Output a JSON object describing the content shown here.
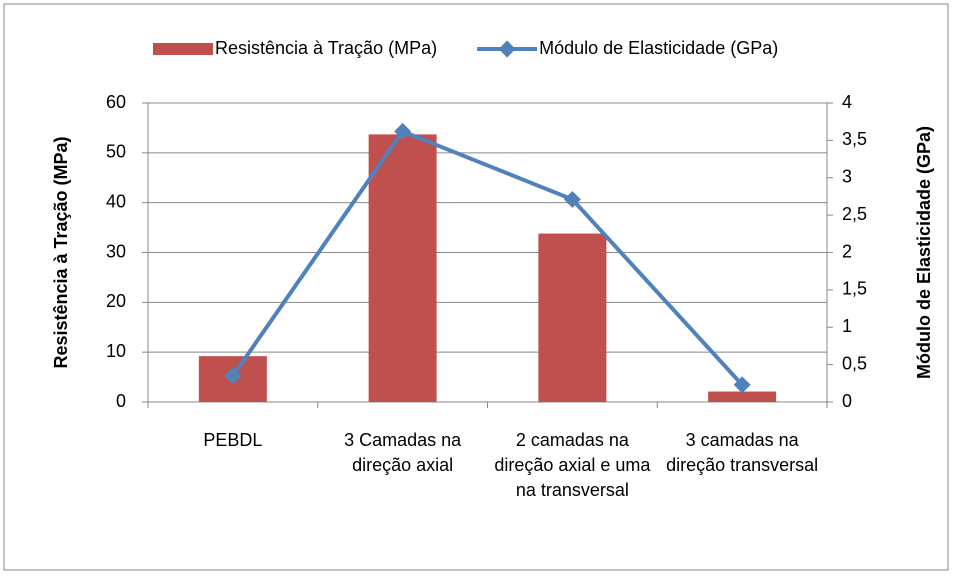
{
  "chart_data": {
    "type": "bar",
    "categories": [
      "PEBDL",
      "3 Camadas na direção axial",
      "2 camadas na direção axial e uma na transversal",
      "3 camadas na direção transversal"
    ],
    "series": [
      {
        "name": "Resistência à Tração (MPa)",
        "color": "#c0504d",
        "values": [
          9.2,
          53.7,
          33.8,
          2.1
        ]
      },
      {
        "name": "Módulo de Elasticidade (GPa)",
        "color": "#4f81bd",
        "type": "line",
        "axis": "y2",
        "values": [
          0.35,
          3.62,
          2.71,
          0.23
        ]
      }
    ],
    "ylabel": "Resistência à Tração (MPa)",
    "y2label": "Módulo de Elasticidade (GPa)",
    "ylim": [
      0,
      60
    ],
    "yticks": [
      0,
      10,
      20,
      30,
      40,
      50,
      60
    ],
    "y2lim": [
      0,
      4
    ],
    "y2ticks": [
      0,
      {
        "value": 0.5,
        "label": "0,5"
      },
      1,
      {
        "value": 1.5,
        "label": "1,5"
      },
      2,
      {
        "value": 2.5,
        "label": "2,5"
      },
      3,
      {
        "value": 3.5,
        "label": "3,5"
      },
      4
    ],
    "grid": true,
    "legend": "top"
  }
}
